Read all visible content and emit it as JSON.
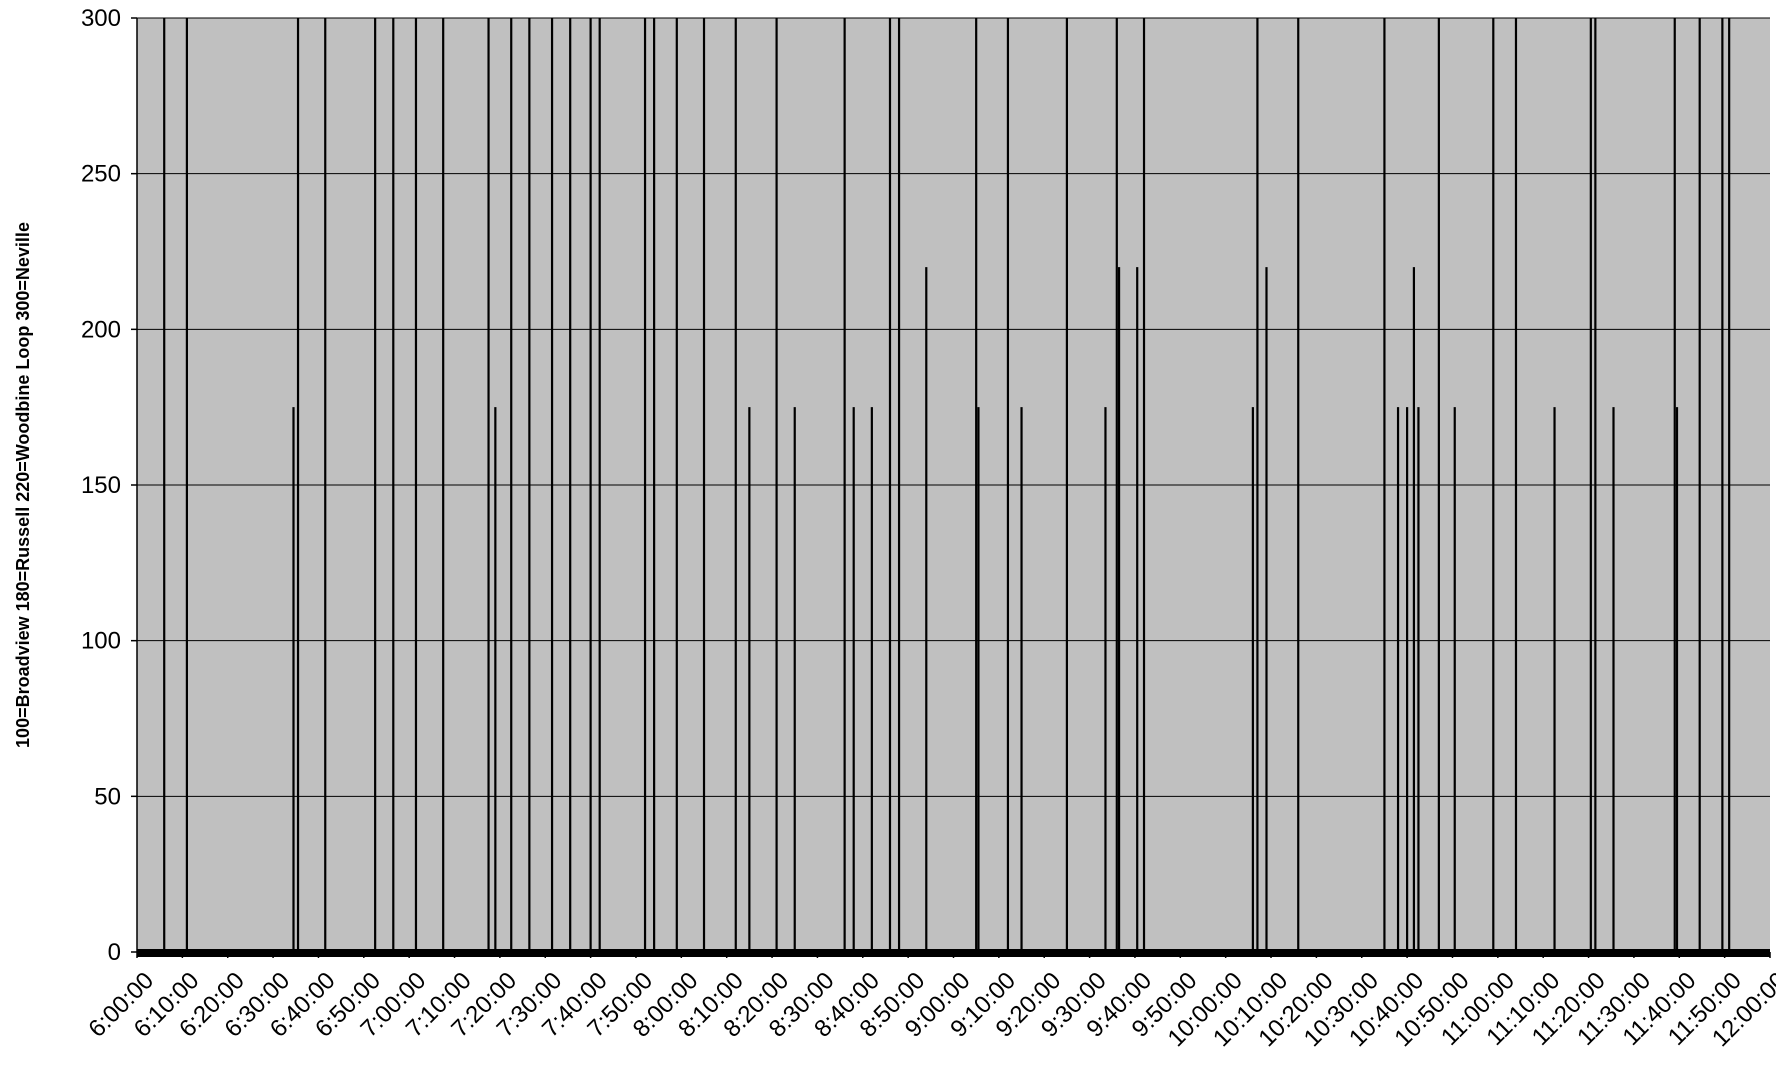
{
  "chart_data": {
    "type": "bar",
    "title": "",
    "xlabel": "",
    "ylabel": "100=Broadview  180=Russell  220=Woodbine Loop  300=Neville",
    "ylim": [
      0,
      300
    ],
    "yticks": [
      0,
      50,
      100,
      150,
      200,
      250,
      300
    ],
    "xlim": [
      "6:00:00",
      "12:00:00"
    ],
    "xticks": [
      "6:00:00",
      "6:10:00",
      "6:20:00",
      "6:30:00",
      "6:40:00",
      "6:50:00",
      "7:00:00",
      "7:10:00",
      "7:20:00",
      "7:30:00",
      "7:40:00",
      "7:50:00",
      "8:00:00",
      "8:10:00",
      "8:20:00",
      "8:30:00",
      "8:40:00",
      "8:50:00",
      "9:00:00",
      "9:10:00",
      "9:20:00",
      "9:30:00",
      "9:40:00",
      "9:50:00",
      "10:00:00",
      "10:10:00",
      "10:20:00",
      "10:30:00",
      "10:40:00",
      "10:50:00",
      "11:00:00",
      "11:10:00",
      "11:20:00",
      "11:30:00",
      "11:40:00",
      "11:50:00",
      "12:00:00"
    ],
    "grid": true,
    "colors": {
      "plot_background": "#c0c0c0",
      "bars": "#000000",
      "gridlines": "#000000"
    },
    "points": [
      {
        "t": "6:06:00",
        "v": 300
      },
      {
        "t": "6:11:00",
        "v": 300
      },
      {
        "t": "6:34:30",
        "v": 175
      },
      {
        "t": "6:35:30",
        "v": 300
      },
      {
        "t": "6:41:30",
        "v": 300
      },
      {
        "t": "6:52:30",
        "v": 300
      },
      {
        "t": "6:56:30",
        "v": 300
      },
      {
        "t": "7:01:30",
        "v": 300
      },
      {
        "t": "7:07:30",
        "v": 300
      },
      {
        "t": "7:17:30",
        "v": 300
      },
      {
        "t": "7:19:00",
        "v": 175
      },
      {
        "t": "7:22:30",
        "v": 300
      },
      {
        "t": "7:26:30",
        "v": 300
      },
      {
        "t": "7:31:30",
        "v": 300
      },
      {
        "t": "7:35:30",
        "v": 300
      },
      {
        "t": "7:40:00",
        "v": 300
      },
      {
        "t": "7:42:00",
        "v": 300
      },
      {
        "t": "7:52:00",
        "v": 300
      },
      {
        "t": "7:54:00",
        "v": 300
      },
      {
        "t": "7:59:00",
        "v": 300
      },
      {
        "t": "8:05:00",
        "v": 300
      },
      {
        "t": "8:12:00",
        "v": 300
      },
      {
        "t": "8:15:00",
        "v": 175
      },
      {
        "t": "8:21:00",
        "v": 300
      },
      {
        "t": "8:25:00",
        "v": 175
      },
      {
        "t": "8:36:00",
        "v": 300
      },
      {
        "t": "8:38:00",
        "v": 175
      },
      {
        "t": "8:42:00",
        "v": 175
      },
      {
        "t": "8:46:00",
        "v": 300
      },
      {
        "t": "8:48:00",
        "v": 300
      },
      {
        "t": "8:54:00",
        "v": 220
      },
      {
        "t": "9:05:00",
        "v": 300
      },
      {
        "t": "9:05:30",
        "v": 175
      },
      {
        "t": "9:12:00",
        "v": 300
      },
      {
        "t": "9:15:00",
        "v": 175
      },
      {
        "t": "9:25:00",
        "v": 300
      },
      {
        "t": "9:33:30",
        "v": 175
      },
      {
        "t": "9:36:00",
        "v": 300
      },
      {
        "t": "9:36:30",
        "v": 220
      },
      {
        "t": "9:40:30",
        "v": 220
      },
      {
        "t": "9:42:00",
        "v": 300
      },
      {
        "t": "10:06:00",
        "v": 175
      },
      {
        "t": "10:07:00",
        "v": 300
      },
      {
        "t": "10:09:00",
        "v": 220
      },
      {
        "t": "10:16:00",
        "v": 300
      },
      {
        "t": "10:35:00",
        "v": 300
      },
      {
        "t": "10:38:00",
        "v": 175
      },
      {
        "t": "10:40:00",
        "v": 175
      },
      {
        "t": "10:41:30",
        "v": 220
      },
      {
        "t": "10:42:30",
        "v": 175
      },
      {
        "t": "10:47:00",
        "v": 300
      },
      {
        "t": "10:50:30",
        "v": 175
      },
      {
        "t": "10:59:00",
        "v": 300
      },
      {
        "t": "11:04:00",
        "v": 300
      },
      {
        "t": "11:12:30",
        "v": 175
      },
      {
        "t": "11:20:30",
        "v": 300
      },
      {
        "t": "11:21:30",
        "v": 300
      },
      {
        "t": "11:25:30",
        "v": 175
      },
      {
        "t": "11:39:00",
        "v": 300
      },
      {
        "t": "11:39:30",
        "v": 175
      },
      {
        "t": "11:44:30",
        "v": 300
      },
      {
        "t": "11:49:30",
        "v": 300
      },
      {
        "t": "11:51:00",
        "v": 300
      }
    ]
  }
}
